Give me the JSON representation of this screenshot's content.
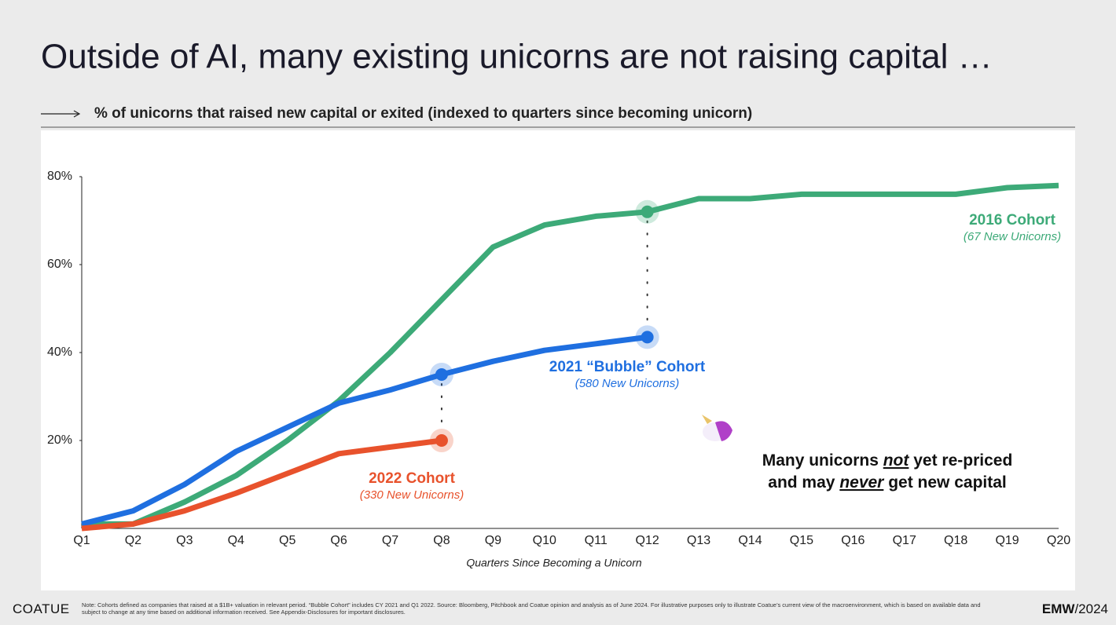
{
  "header": {
    "title": "Outside of AI, many existing unicorns are not raising capital …",
    "subtitle": "% of unicorns that raised new capital or exited (indexed to quarters since becoming unicorn)"
  },
  "chart_data": {
    "type": "line",
    "categories": [
      "Q1",
      "Q2",
      "Q3",
      "Q4",
      "Q5",
      "Q6",
      "Q7",
      "Q8",
      "Q9",
      "Q10",
      "Q11",
      "Q12",
      "Q13",
      "Q14",
      "Q15",
      "Q16",
      "Q17",
      "Q18",
      "Q19",
      "Q20"
    ],
    "x_label": "Quarters Since Becoming a Unicorn",
    "ylim": [
      0,
      80
    ],
    "yticks": [
      {
        "value": 20,
        "label": "20%"
      },
      {
        "value": 40,
        "label": "40%"
      },
      {
        "value": 60,
        "label": "60%"
      },
      {
        "value": 80,
        "label": "80%"
      }
    ],
    "grid": false,
    "series": [
      {
        "name": "2016 Cohort",
        "note": "(67 New Unicorns)",
        "color": "#3daa78",
        "values": [
          1,
          1,
          6,
          12,
          20,
          29,
          40,
          52,
          64,
          69,
          71,
          72,
          75,
          75,
          76,
          76,
          76,
          76,
          77.5,
          78
        ]
      },
      {
        "name": "2021 “Bubble” Cohort",
        "note": "(580 New Unicorns)",
        "color": "#1f6fe0",
        "values": [
          1,
          4,
          10,
          17.5,
          23,
          28.5,
          31.5,
          35,
          38,
          40.5,
          42,
          43.5,
          null,
          null,
          null,
          null,
          null,
          null,
          null,
          null
        ]
      },
      {
        "name": "2022 Cohort",
        "note": "(330 New Unicorns)",
        "color": "#e8522c",
        "values": [
          0,
          1,
          4,
          8,
          12.5,
          17,
          18.5,
          20,
          null,
          null,
          null,
          null,
          null,
          null,
          null,
          null,
          null,
          null,
          null,
          null
        ]
      }
    ],
    "annotation": {
      "line1": [
        "Many unicorns ",
        "not",
        " yet re-priced"
      ],
      "line2": [
        "and may ",
        "never",
        " get new capital"
      ]
    }
  },
  "footer": {
    "brand": "COATUE",
    "note": "Note: Cohorts defined as companies that raised at a $1B+ valuation in relevant period. “Bubble Cohort” includes CY 2021 and Q1 2022. Source: Bloomberg, Pitchbook and Coatue opinion and analysis as of June 2024. For illustrative purposes only to illustrate Coatue’s current view of the macroenvironment, which is based on available data and subject to change at any time based on additional information received. See Appendix-Disclosures for important disclosures.",
    "event": "EMW",
    "year": "/2024"
  }
}
